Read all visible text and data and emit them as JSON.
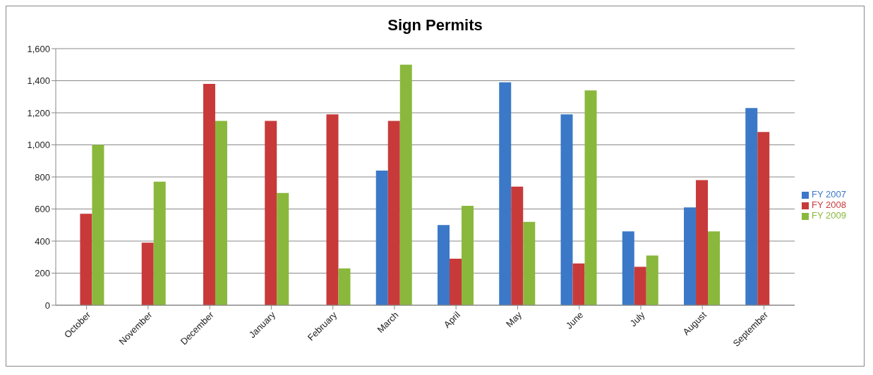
{
  "chart_data": {
    "type": "bar",
    "title": "Sign Permits",
    "categories": [
      "October",
      "November",
      "December",
      "January",
      "February",
      "March",
      "April",
      "May",
      "June",
      "July",
      "August",
      "September"
    ],
    "series": [
      {
        "name": "FY 2007",
        "color": "#3b78c8",
        "values": [
          null,
          null,
          null,
          null,
          null,
          840,
          500,
          1390,
          1190,
          460,
          610,
          1230
        ]
      },
      {
        "name": "FY 2008",
        "color": "#c83a3a",
        "values": [
          570,
          390,
          1380,
          1150,
          1190,
          1150,
          290,
          740,
          260,
          240,
          780,
          1080
        ]
      },
      {
        "name": "FY 2009",
        "color": "#8ab83c",
        "values": [
          1000,
          770,
          1150,
          700,
          230,
          1500,
          620,
          520,
          1340,
          310,
          460,
          null
        ]
      }
    ],
    "ylim": [
      0,
      1600
    ],
    "yticks": [
      {
        "value": 0,
        "label": "0"
      },
      {
        "value": 200,
        "label": "200"
      },
      {
        "value": 400,
        "label": "400"
      },
      {
        "value": 600,
        "label": "600"
      },
      {
        "value": 800,
        "label": "800"
      },
      {
        "value": 1000,
        "label": "1,000"
      },
      {
        "value": 1200,
        "label": "1,200"
      },
      {
        "value": 1400,
        "label": "1,400"
      },
      {
        "value": 1600,
        "label": "1,600"
      }
    ],
    "grid": "y",
    "legend": "right"
  }
}
